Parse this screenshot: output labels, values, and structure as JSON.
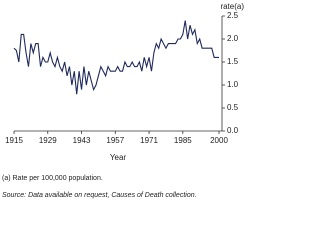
{
  "chart_data": {
    "type": "line",
    "y_axis_label": "rate(a)",
    "x_axis_label": "Year",
    "footnote": "(a) Rate per 100,000 population.",
    "source": "Source: Data available on request, Causes of Death collection.",
    "x": [
      1915,
      1916,
      1917,
      1918,
      1919,
      1920,
      1921,
      1922,
      1923,
      1924,
      1925,
      1926,
      1927,
      1928,
      1929,
      1930,
      1931,
      1932,
      1933,
      1934,
      1935,
      1936,
      1937,
      1938,
      1939,
      1940,
      1941,
      1942,
      1943,
      1944,
      1945,
      1946,
      1947,
      1948,
      1949,
      1950,
      1951,
      1952,
      1953,
      1954,
      1955,
      1956,
      1957,
      1958,
      1959,
      1960,
      1961,
      1962,
      1963,
      1964,
      1965,
      1966,
      1967,
      1968,
      1969,
      1970,
      1971,
      1972,
      1973,
      1974,
      1975,
      1976,
      1977,
      1978,
      1979,
      1980,
      1981,
      1982,
      1983,
      1984,
      1985,
      1986,
      1987,
      1988,
      1989,
      1990,
      1991,
      1992,
      1993,
      1994,
      1995,
      1996,
      1997,
      1998,
      1999,
      2000
    ],
    "series": [
      {
        "color": "#1f2a5c",
        "values": [
          1.8,
          1.75,
          1.5,
          2.1,
          2.1,
          1.7,
          1.4,
          1.9,
          1.7,
          1.9,
          1.9,
          1.4,
          1.6,
          1.5,
          1.5,
          1.7,
          1.5,
          1.4,
          1.6,
          1.4,
          1.3,
          1.5,
          1.2,
          1.4,
          1.0,
          1.3,
          0.8,
          1.3,
          0.9,
          1.4,
          1.0,
          1.3,
          1.1,
          0.9,
          1.0,
          1.2,
          1.4,
          1.3,
          1.2,
          1.4,
          1.3,
          1.3,
          1.3,
          1.4,
          1.3,
          1.3,
          1.5,
          1.4,
          1.4,
          1.5,
          1.4,
          1.4,
          1.5,
          1.3,
          1.6,
          1.4,
          1.6,
          1.3,
          1.7,
          1.9,
          1.8,
          2.0,
          1.9,
          1.8,
          1.9,
          1.9,
          1.9,
          1.9,
          2.0,
          2.0,
          2.1,
          2.4,
          2.0,
          2.3,
          2.1,
          2.2,
          1.9,
          2.0,
          1.8,
          1.8,
          1.8,
          1.8,
          1.8,
          1.6,
          1.6,
          1.6
        ]
      }
    ],
    "xlim": [
      1915,
      2000
    ],
    "xticks": [
      1915,
      1929,
      1943,
      1957,
      1971,
      1985,
      2000
    ],
    "ylim": [
      0,
      2.5
    ],
    "yticks": [
      {
        "value": 0,
        "label": "0.0"
      },
      0.5,
      {
        "value": 1,
        "label": "1.0"
      },
      1.5,
      {
        "value": 2,
        "label": "2.0"
      },
      2.5
    ]
  }
}
